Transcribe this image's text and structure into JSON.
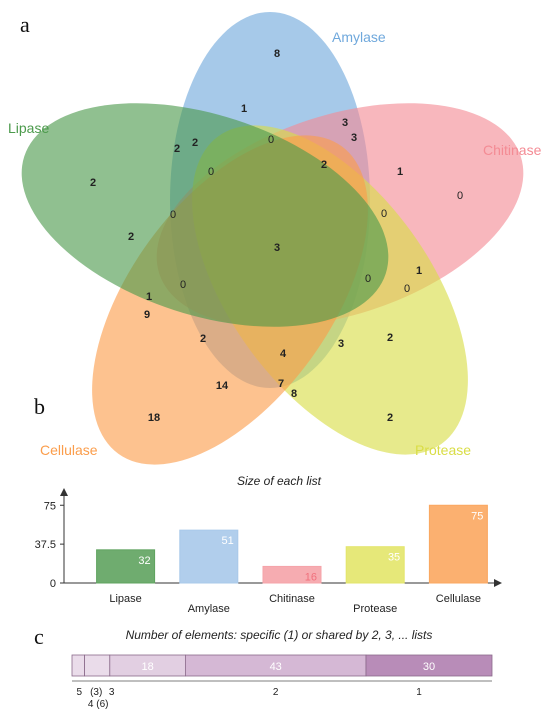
{
  "panels": {
    "a": "a",
    "b": "b",
    "c": "c"
  },
  "venn": {
    "sets": [
      {
        "name": "Amylase",
        "color": "#6fa8dc"
      },
      {
        "name": "Chitinase",
        "color": "#f48b94"
      },
      {
        "name": "Protease",
        "color": "#d9dd45"
      },
      {
        "name": "Cellulase",
        "color": "#fb9d4b"
      },
      {
        "name": "Lipase",
        "color": "#4c9a4c"
      }
    ],
    "regions": [
      {
        "value": "8",
        "bold": true
      },
      {
        "value": "1",
        "bold": true
      },
      {
        "value": "0",
        "bold": false
      },
      {
        "value": "3",
        "bold": true
      },
      {
        "value": "3",
        "bold": true
      },
      {
        "value": "2",
        "bold": true
      },
      {
        "value": "2",
        "bold": true
      },
      {
        "value": "2",
        "bold": true
      },
      {
        "value": "0",
        "bold": false
      },
      {
        "value": "2",
        "bold": true
      },
      {
        "value": "1",
        "bold": true
      },
      {
        "value": "0",
        "bold": false
      },
      {
        "value": "0",
        "bold": false
      },
      {
        "value": "0",
        "bold": false
      },
      {
        "value": "2",
        "bold": true
      },
      {
        "value": "3",
        "bold": true
      },
      {
        "value": "0",
        "bold": false
      },
      {
        "value": "1",
        "bold": true
      },
      {
        "value": "0",
        "bold": false
      },
      {
        "value": "0",
        "bold": false
      },
      {
        "value": "1",
        "bold": true
      },
      {
        "value": "9",
        "bold": true
      },
      {
        "value": "2",
        "bold": true
      },
      {
        "value": "4",
        "bold": true
      },
      {
        "value": "3",
        "bold": true
      },
      {
        "value": "2",
        "bold": true
      },
      {
        "value": "14",
        "bold": true
      },
      {
        "value": "7",
        "bold": true
      },
      {
        "value": "8",
        "bold": true
      },
      {
        "value": "18",
        "bold": true
      },
      {
        "value": "2",
        "bold": true
      }
    ]
  },
  "chart_data": [
    {
      "type": "bar",
      "title": "Size of each list",
      "categories": [
        "Lipase",
        "Amylase",
        "Chitinase",
        "Protease",
        "Cellulase"
      ],
      "values": [
        32,
        51,
        16,
        35,
        75
      ],
      "colors": [
        "#5fa35f",
        "#a9c9ea",
        "#f5a3a9",
        "#e3e56a",
        "#fba760"
      ],
      "label_colors": [
        "#ffffff",
        "#ffffff",
        "#f0707c",
        "#ffffff",
        "#ffffff"
      ],
      "ylim": [
        0,
        82
      ],
      "yticks": [
        "0",
        "37.5",
        "75"
      ],
      "ytick_values": [
        0,
        37.5,
        75
      ],
      "xlabel": "",
      "ylabel": ""
    },
    {
      "type": "bar",
      "title": "Number of elements: specific (1) or shared by 2, 3, ... lists",
      "segments": [
        {
          "label": "",
          "value": 3,
          "color": "#eadcea"
        },
        {
          "label": "",
          "value": 6,
          "color": "#eadcea"
        },
        {
          "label": "18",
          "value": 18,
          "color": "#e2cfe2"
        },
        {
          "label": "43",
          "value": 43,
          "color": "#d5b8d5"
        },
        {
          "label": "30",
          "value": 30,
          "color": "#b88cb8"
        }
      ],
      "under_labels": [
        "5",
        "(3)",
        "4 (6)",
        "3",
        "2",
        "1"
      ]
    }
  ]
}
